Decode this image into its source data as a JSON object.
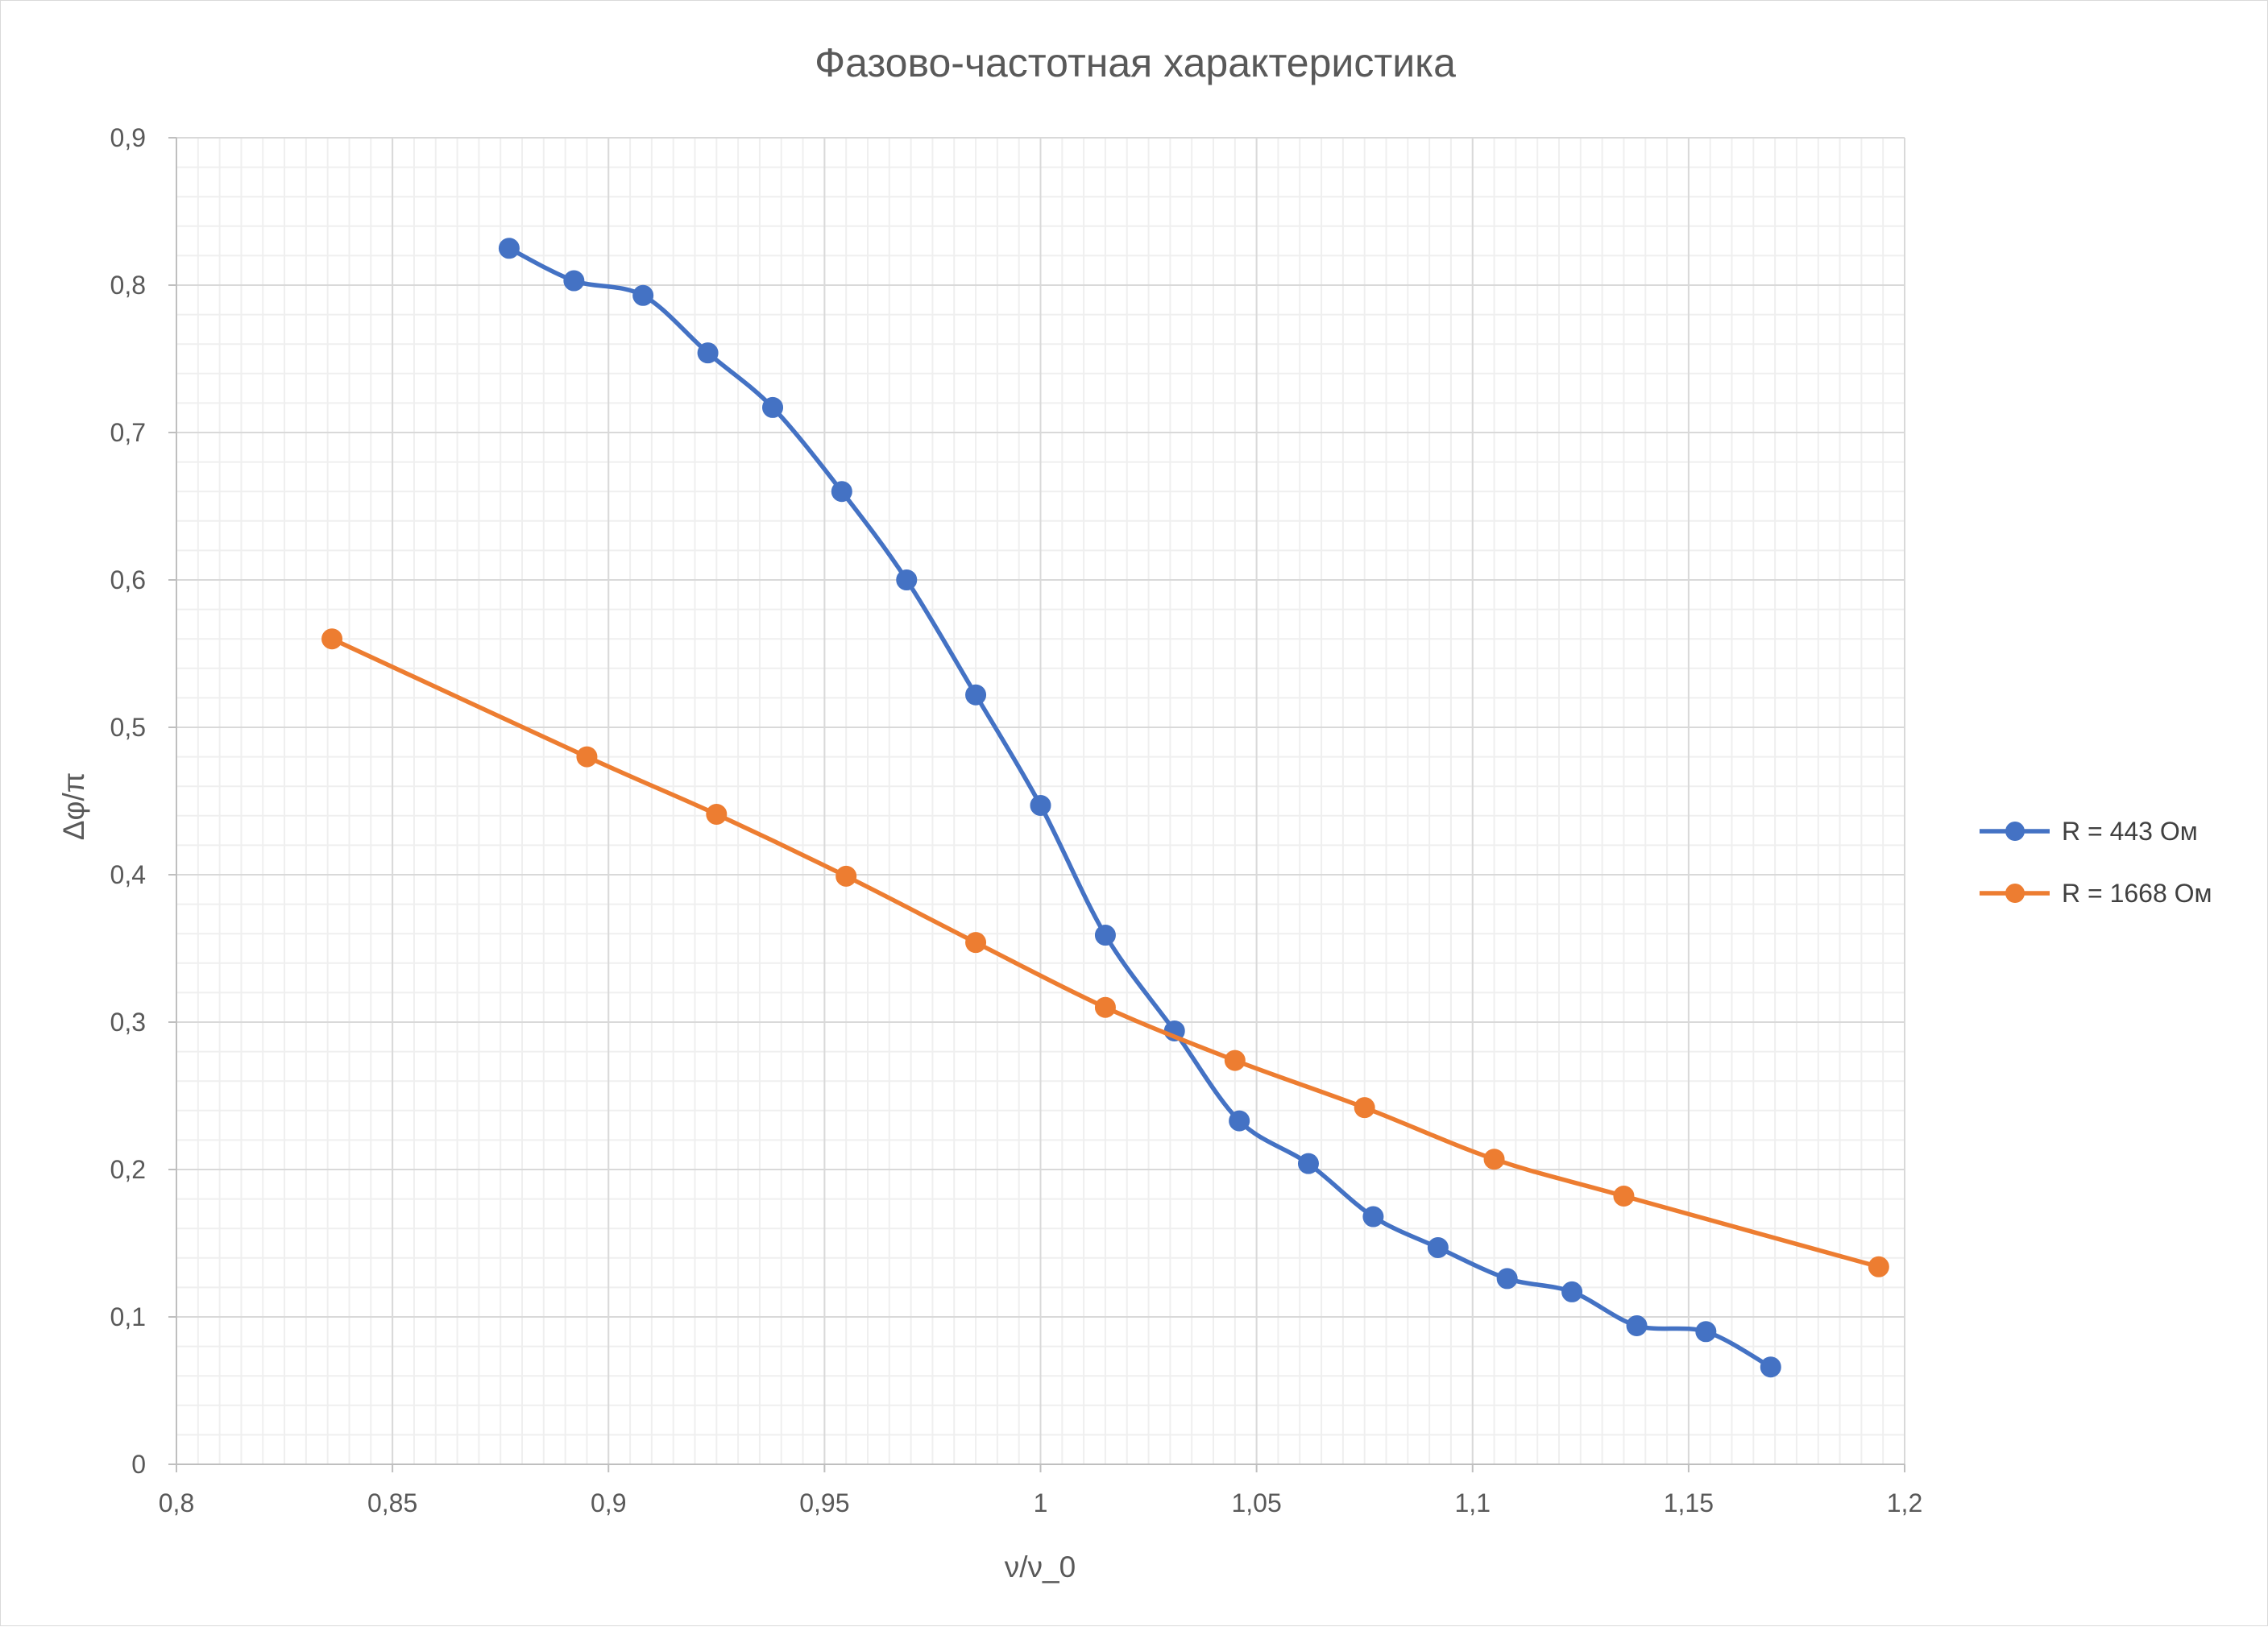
{
  "chart_data": {
    "type": "scatter",
    "title": "Фазово-частотная характеристика",
    "xlabel": "ν/ν_0",
    "ylabel": "Δφ/π",
    "xlim": [
      0.8,
      1.2
    ],
    "ylim": [
      0,
      0.9
    ],
    "x_ticks": [
      0.8,
      0.85,
      0.9,
      0.95,
      1,
      1.05,
      1.1,
      1.15,
      1.2
    ],
    "x_tick_labels": [
      "0,8",
      "0,85",
      "0,9",
      "0,95",
      "1",
      "1,05",
      "1,1",
      "1,15",
      "1,2"
    ],
    "y_ticks": [
      0,
      0.1,
      0.2,
      0.3,
      0.4,
      0.5,
      0.6,
      0.7,
      0.8,
      0.9
    ],
    "y_tick_labels": [
      "0",
      "0,1",
      "0,2",
      "0,3",
      "0,4",
      "0,5",
      "0,6",
      "0,7",
      "0,8",
      "0,9"
    ],
    "grid": true,
    "minor_grid": true,
    "legend_position": "right",
    "series": [
      {
        "name": "R = 443 Ом",
        "color": "#4472c4",
        "smooth": true,
        "x": [
          0.877,
          0.892,
          0.908,
          0.923,
          0.938,
          0.954,
          0.969,
          0.985,
          1.0,
          1.015,
          1.031,
          1.046,
          1.062,
          1.077,
          1.092,
          1.108,
          1.123,
          1.138,
          1.154,
          1.169
        ],
        "y": [
          0.825,
          0.803,
          0.793,
          0.754,
          0.717,
          0.66,
          0.6,
          0.522,
          0.447,
          0.359,
          0.294,
          0.233,
          0.204,
          0.168,
          0.147,
          0.126,
          0.117,
          0.094,
          0.09,
          0.066
        ]
      },
      {
        "name": "R = 1668 Ом",
        "color": "#ed7d31",
        "smooth": true,
        "x": [
          0.836,
          0.895,
          0.925,
          0.955,
          0.985,
          1.015,
          1.045,
          1.075,
          1.105,
          1.135,
          1.194
        ],
        "y": [
          0.56,
          0.48,
          0.441,
          0.399,
          0.354,
          0.31,
          0.274,
          0.242,
          0.207,
          0.182,
          0.134
        ]
      }
    ]
  }
}
